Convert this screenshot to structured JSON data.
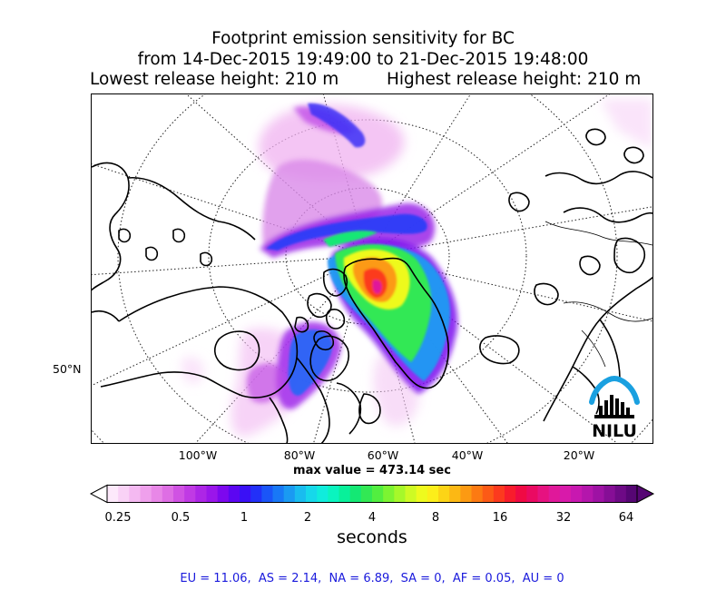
{
  "title": {
    "line1": "Footprint emission sensitivity for BC",
    "line2": "from 14-Dec-2015 19:49:00 to 21-Dec-2015 19:48:00",
    "line3_left": "Lowest release height: 210 m",
    "line3_right": "Highest release height: 210 m"
  },
  "map": {
    "lon_labels": [
      "100°W",
      "80°W",
      "60°W",
      "40°W",
      "20°W"
    ],
    "lat_labels": [
      "50°N"
    ],
    "logo_text": "NILU",
    "max_value_text": "max value = 473.14 sec"
  },
  "colorbar": {
    "tick_labels": [
      "0.25",
      "0.5",
      "1",
      "2",
      "4",
      "8",
      "16",
      "32",
      "64"
    ],
    "label": "seconds",
    "colors": [
      "#fde9fb",
      "#f9d2f6",
      "#f4b9f1",
      "#efa0ec",
      "#e887e7",
      "#de6ee4",
      "#d052e3",
      "#c03ae4",
      "#ad26e6",
      "#9a16ea",
      "#7d08ee",
      "#5c06f2",
      "#3a10f6",
      "#2230f8",
      "#1a55f8",
      "#1878f6",
      "#1a9af2",
      "#19bcef",
      "#16d8ea",
      "#10ecdc",
      "#0af4bf",
      "#08f09a",
      "#14e874",
      "#32e854",
      "#52ee40",
      "#7cf432",
      "#a6f82a",
      "#cefa24",
      "#eefa1e",
      "#fcee1a",
      "#fcd416",
      "#fcb814",
      "#fc9a12",
      "#fc7a12",
      "#fc5a16",
      "#fc3a1e",
      "#f81c2c",
      "#f00a44",
      "#ea0a62",
      "#e61280",
      "#e0189a",
      "#d81aaa",
      "#c818b0",
      "#b416ac",
      "#9e12a4",
      "#860e96",
      "#6e0a86",
      "#560674"
    ]
  },
  "footer": "EU = 11.06,  AS = 2.14,  NA = 6.89,  SA = 0,  AF = 0.05,  AU = 0"
}
